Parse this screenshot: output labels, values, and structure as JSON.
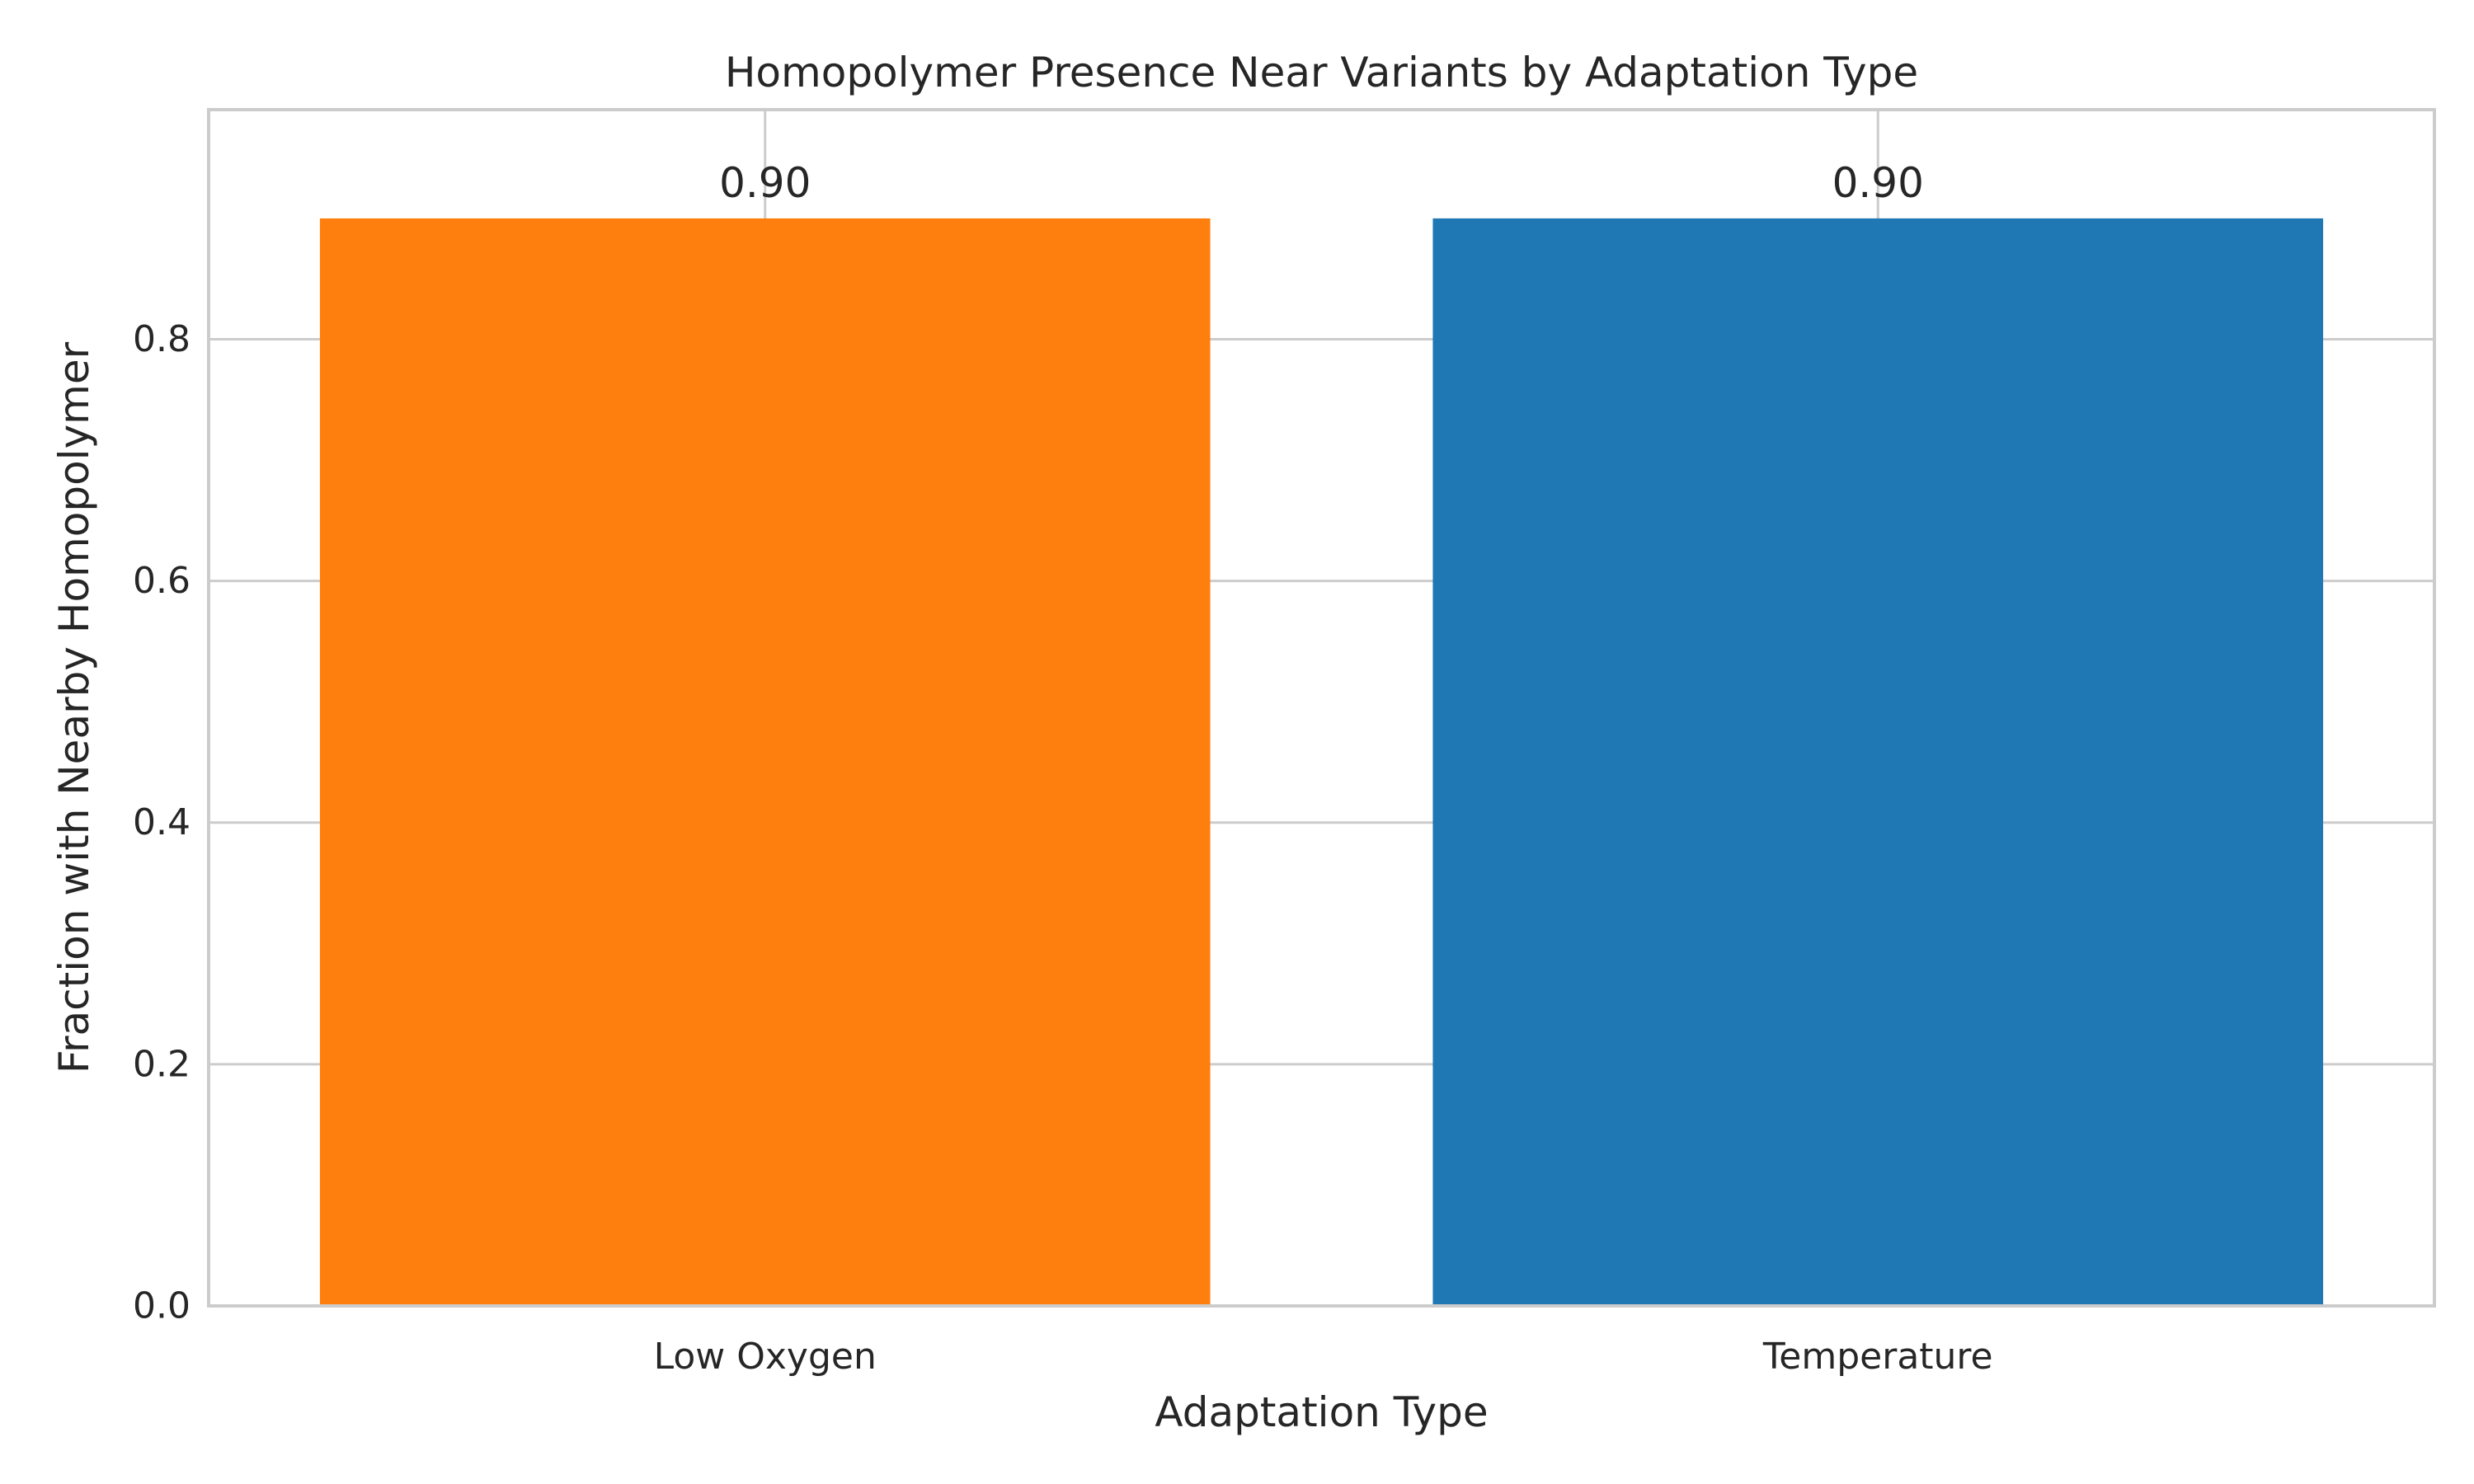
{
  "chart_data": {
    "type": "bar",
    "title": "Homopolymer Presence Near Variants by Adaptation Type",
    "xlabel": "Adaptation Type",
    "ylabel": "Fraction with Nearby Homopolymer",
    "categories": [
      "Low Oxygen",
      "Temperature"
    ],
    "values": [
      0.9,
      0.9
    ],
    "data_labels": [
      "0.90",
      "0.90"
    ],
    "colors": [
      "#ff7f0e",
      "#1f77b4"
    ],
    "ylim": [
      0,
      0.99
    ],
    "yticks": [
      0.0,
      0.2,
      0.4,
      0.6,
      0.8
    ],
    "ytick_labels": [
      "0.0",
      "0.2",
      "0.4",
      "0.6",
      "0.8"
    ],
    "grid": true,
    "grid_color": "#cccccc",
    "text_color": "#262626"
  }
}
